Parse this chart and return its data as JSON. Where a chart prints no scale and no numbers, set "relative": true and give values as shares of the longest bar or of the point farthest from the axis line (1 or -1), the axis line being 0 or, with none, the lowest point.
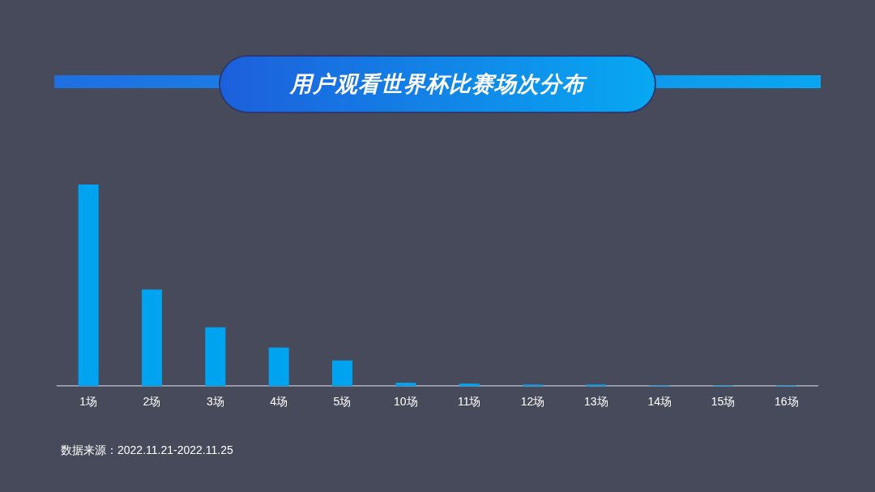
{
  "chart_data": {
    "type": "bar",
    "title": "用户观看世界杯比赛场次分布",
    "categories": [
      "1场",
      "2场",
      "3场",
      "4场",
      "5场",
      "10场",
      "11场",
      "12场",
      "13场",
      "14场",
      "15场",
      "16场"
    ],
    "values": [
      1,
      0.479,
      0.292,
      0.191,
      0.127,
      0.017,
      0.013,
      0.008,
      0.008,
      0.004,
      0.004,
      0.004
    ],
    "color": "#00a3f0",
    "relative": true,
    "grid": false,
    "legend": false,
    "annotations": [
      "数据来源：2022.11.21-2022.11.25"
    ]
  }
}
